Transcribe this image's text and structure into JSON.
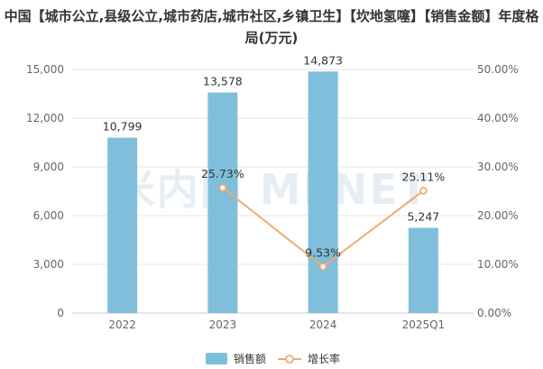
{
  "title": "中国【城市公立,县级公立,城市药店,城市社区,乡镇卫生】【坎地氢噻】【销售金额】年度格局(万元)",
  "watermark": "米内网 MENET",
  "chart_data": {
    "type": "bar+line",
    "categories": [
      "2022",
      "2023",
      "2024",
      "2025Q1"
    ],
    "series": [
      {
        "name": "销售额",
        "type": "bar",
        "axis": "left",
        "values": [
          10799,
          13578,
          14873,
          5247
        ],
        "labels": [
          "10,799",
          "13,578",
          "14,873",
          "5,247"
        ],
        "color": "#7fbfdc"
      },
      {
        "name": "增长率",
        "type": "line",
        "axis": "right",
        "values": [
          null,
          25.73,
          9.53,
          25.11
        ],
        "labels": [
          "",
          "25.73%",
          "9.53%",
          "25.11%"
        ],
        "color": "#efab6c"
      }
    ],
    "yleft": {
      "min": 0,
      "max": 15000,
      "ticks": [
        0,
        3000,
        6000,
        9000,
        12000,
        15000
      ],
      "tick_labels": [
        "0",
        "3,000",
        "6,000",
        "9,000",
        "12,000",
        "15,000"
      ]
    },
    "yright": {
      "min": 0,
      "max": 50,
      "ticks": [
        0,
        10,
        20,
        30,
        40,
        50
      ],
      "tick_labels": [
        "0.00%",
        "10.00%",
        "20.00%",
        "30.00%",
        "40.00%",
        "50.00%"
      ]
    },
    "grid": true,
    "legend": "bottom-center"
  }
}
